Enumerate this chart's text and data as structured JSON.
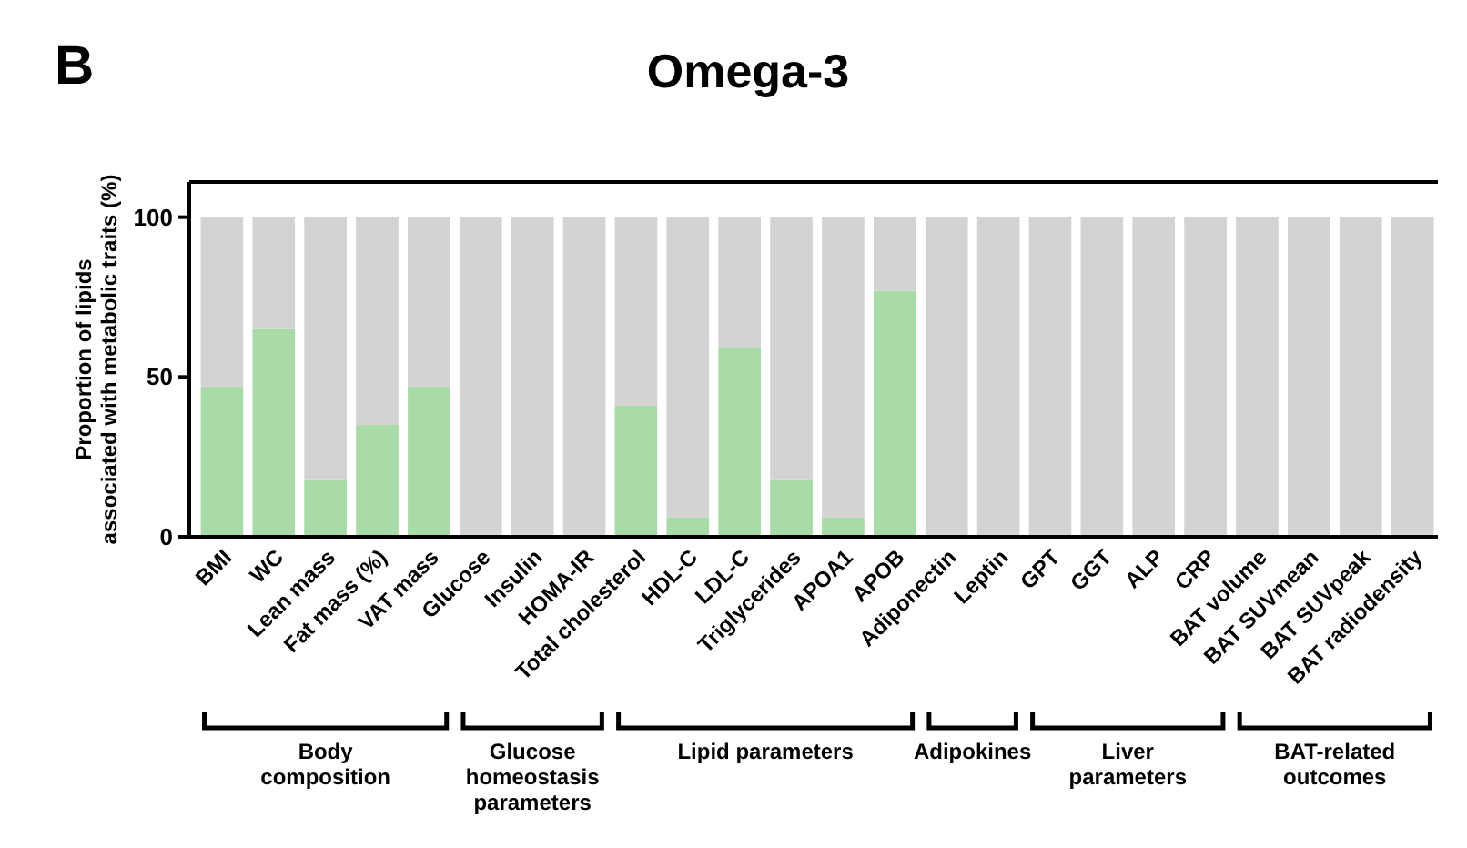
{
  "chart_data": {
    "type": "bar",
    "title": "Omega-3",
    "ylabel": "Proportion of lipids\nassociated with metabolic traits (%)",
    "stacked": true,
    "categories": [
      "BMI",
      "WC",
      "Lean mass",
      "Fat mass (%)",
      "VAT mass",
      "Glucose",
      "Insulin",
      "HOMA-IR",
      "Total cholesterol",
      "HDL-C",
      "LDL-C",
      "Triglycerides",
      "APOA1",
      "APOB",
      "Adiponectin",
      "Leptin",
      "GPT",
      "GGT",
      "ALP",
      "CRP",
      "BAT volume",
      "BAT SUVmean",
      "BAT SUVpeak",
      "BAT radiodensity"
    ],
    "series": [
      {
        "color": "#a8dba8",
        "values": [
          47,
          65,
          18,
          35,
          47,
          0,
          0,
          0,
          41,
          6,
          59,
          18,
          6,
          77,
          0,
          0,
          0,
          0,
          0,
          0,
          0,
          0,
          0,
          0
        ]
      },
      {
        "color": "#d3d3d3",
        "values": [
          53,
          35,
          82,
          65,
          53,
          100,
          100,
          100,
          59,
          94,
          41,
          82,
          94,
          23,
          100,
          100,
          100,
          100,
          100,
          100,
          100,
          100,
          100,
          100
        ]
      }
    ],
    "ylim": [
      0,
      111
    ],
    "yticks": [
      0,
      50,
      100
    ],
    "grid": false,
    "annotations": [
      "B",
      "Body\ncomposition",
      "Glucose\nhomeostasis\nparameters",
      "Lipid parameters",
      "Adipokines",
      "Liver\nparameters",
      "BAT-related\noutcomes"
    ]
  }
}
